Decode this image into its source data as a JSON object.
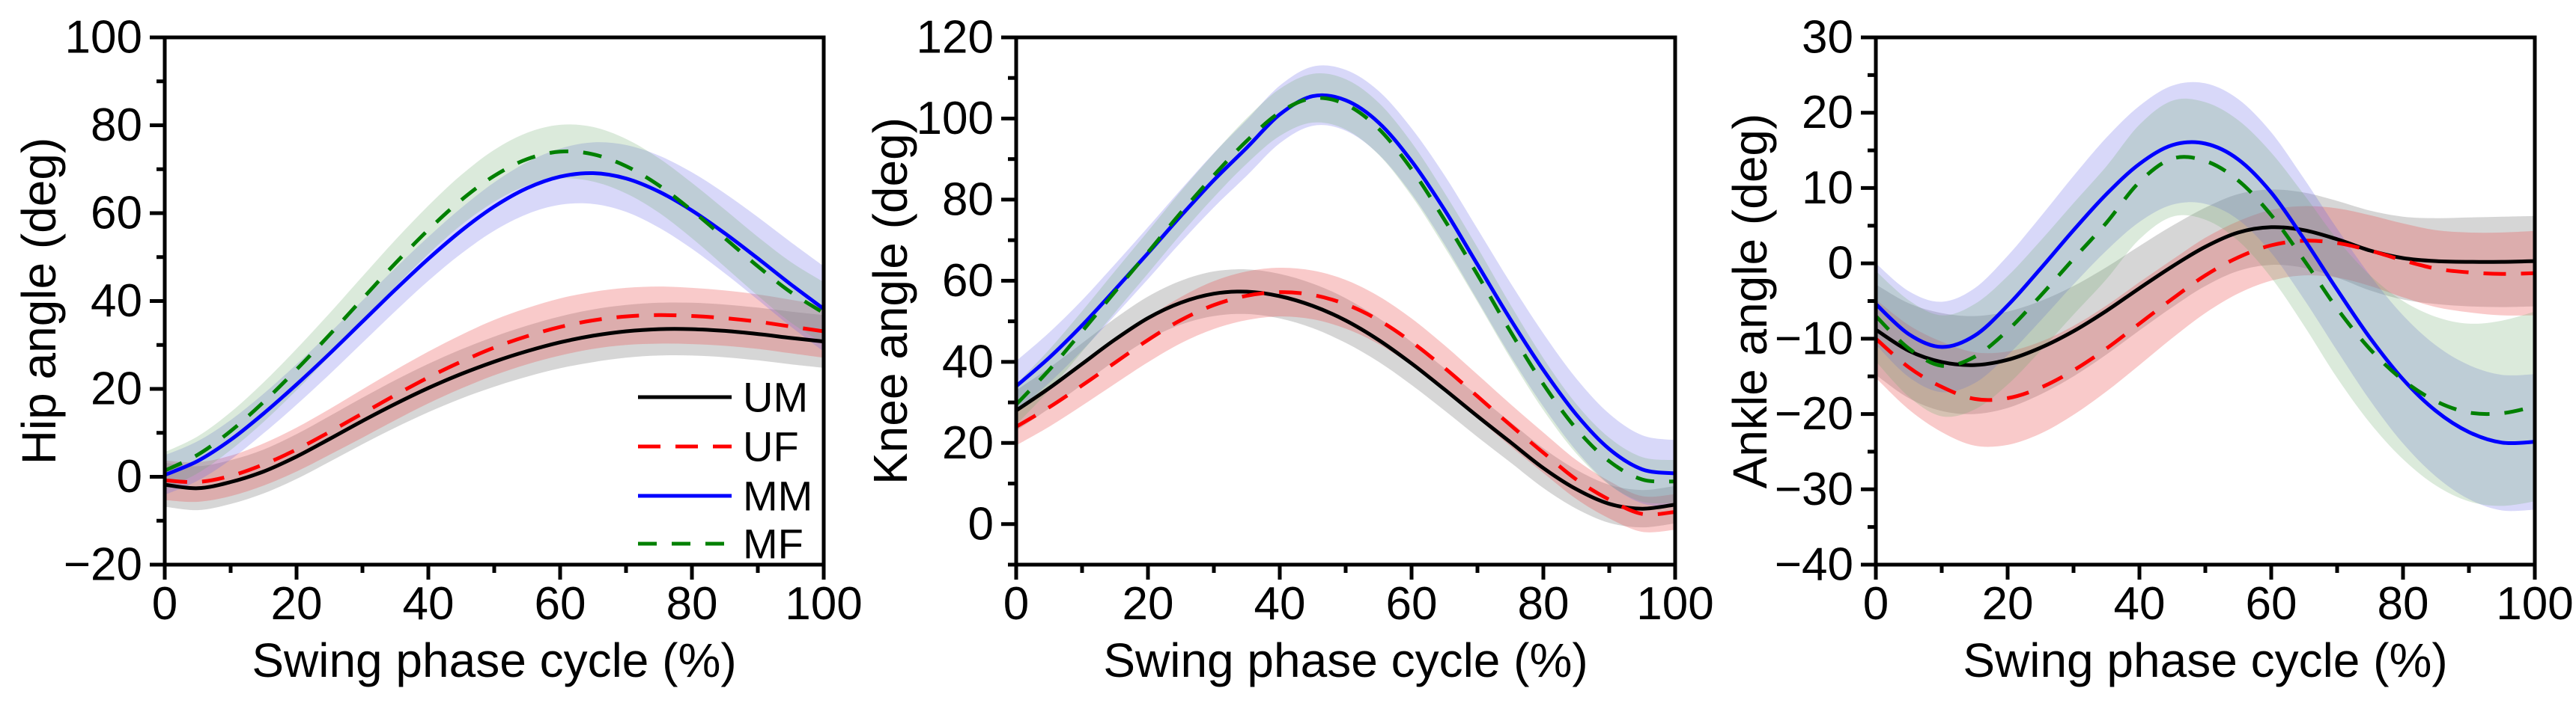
{
  "figure_title": "",
  "chart_data": [
    {
      "type": "line",
      "panel_id": "hip",
      "title": "",
      "xlabel": "Swing phase cycle (%)",
      "ylabel": "Hip angle (deg)",
      "xlim": [
        0,
        100
      ],
      "ylim": [
        -20,
        100
      ],
      "xticks": [
        0,
        20,
        40,
        60,
        80,
        100
      ],
      "yticks": [
        -20,
        0,
        20,
        40,
        60,
        80,
        100
      ],
      "x_minor_step": 10,
      "y_minor_step": 10,
      "grid": false,
      "x": [
        0,
        5,
        10,
        15,
        20,
        25,
        30,
        35,
        40,
        45,
        50,
        55,
        60,
        65,
        70,
        75,
        80,
        85,
        90,
        95,
        100
      ],
      "series": [
        {
          "name": "UM",
          "color": "#000000",
          "line_style": "solid",
          "band_color": "rgba(128,128,128,0.32)",
          "values": [
            -1.8,
            -2.6,
            -1.2,
            1.2,
            4.6,
            8.6,
            12.7,
            16.6,
            20.2,
            23.4,
            26.2,
            28.6,
            30.6,
            32.1,
            33.1,
            33.6,
            33.6,
            33.2,
            32.5,
            31.6,
            30.8
          ],
          "band_halfwidth": [
            5,
            5,
            5,
            5,
            5.1,
            5.2,
            5.3,
            5.4,
            5.5,
            5.6,
            5.7,
            5.8,
            5.9,
            6,
            6,
            6,
            6,
            6,
            6,
            6,
            6
          ]
        },
        {
          "name": "UF",
          "color": "#ff0000",
          "line_style": "dash",
          "band_color": "rgba(235,80,80,0.30)",
          "values": [
            -0.8,
            -1.2,
            0.2,
            2.8,
            6.2,
            10.2,
            14.4,
            18.6,
            22.6,
            26.2,
            29.4,
            32,
            34.1,
            35.6,
            36.5,
            36.8,
            36.6,
            36.1,
            35.3,
            34.2,
            33.1
          ],
          "band_halfwidth": [
            4.5,
            4.5,
            4.6,
            4.8,
            5,
            5.2,
            5.5,
            5.7,
            5.9,
            6.1,
            6.3,
            6.4,
            6.5,
            6.5,
            6.5,
            6.5,
            6.4,
            6.3,
            6.2,
            6.1,
            6
          ]
        },
        {
          "name": "MM",
          "color": "#0000ff",
          "line_style": "solid",
          "band_color": "rgba(100,100,230,0.25)",
          "values": [
            0.4,
            3.6,
            8.4,
            14.4,
            21,
            28,
            35.3,
            42.6,
            49.6,
            56,
            61.5,
            65.7,
            68.3,
            69.1,
            67.9,
            64.9,
            60.6,
            55.4,
            49.7,
            43.8,
            38.2
          ],
          "band_halfwidth": [
            4.5,
            4.5,
            4.5,
            4.5,
            4.6,
            4.7,
            4.8,
            4.9,
            5,
            5.2,
            5.5,
            5.9,
            6.4,
            7,
            7.6,
            8.2,
            8.7,
            9.1,
            9.4,
            9.6,
            9.7
          ]
        },
        {
          "name": "MF",
          "color": "#008000",
          "line_style": "dash",
          "band_color": "rgba(110,170,110,0.25)",
          "values": [
            1.4,
            5,
            10.4,
            17,
            24.4,
            32.3,
            40.5,
            48.6,
            56.2,
            63,
            68.5,
            72.3,
            74,
            73.4,
            70.7,
            66.3,
            60.6,
            54.3,
            47.9,
            42,
            37.3
          ],
          "band_halfwidth": [
            4.2,
            4.2,
            4.3,
            4.5,
            4.7,
            4.9,
            5.1,
            5.3,
            5.5,
            5.7,
            5.9,
            6,
            6.1,
            6.2,
            6.2,
            6.2,
            6.3,
            6.5,
            6.7,
            6.9,
            7
          ]
        }
      ],
      "legend": {
        "show": true,
        "labels": [
          "UM",
          "UF",
          "MM",
          "MF"
        ],
        "position": "bottom-right"
      }
    },
    {
      "type": "line",
      "panel_id": "knee",
      "title": "",
      "xlabel": "Swing phase cycle (%)",
      "ylabel": "Knee angle (deg)",
      "xlim": [
        0,
        100
      ],
      "ylim": [
        -10,
        120
      ],
      "xticks": [
        0,
        20,
        40,
        60,
        80,
        100
      ],
      "yticks": [
        0,
        20,
        40,
        60,
        80,
        100,
        120
      ],
      "x_minor_step": 10,
      "y_minor_step": 10,
      "grid": false,
      "x": [
        0,
        5,
        10,
        15,
        20,
        25,
        30,
        35,
        40,
        45,
        50,
        55,
        60,
        65,
        70,
        75,
        80,
        85,
        90,
        95,
        100
      ],
      "series": [
        {
          "name": "UM",
          "color": "#000000",
          "line_style": "solid",
          "band_color": "rgba(128,128,128,0.32)",
          "values": [
            28,
            33.5,
            39.5,
            45.5,
            50.8,
            54.6,
            56.8,
            57.3,
            56.2,
            53.8,
            50.2,
            45.4,
            39.6,
            33.2,
            26.6,
            20.2,
            13.8,
            8.6,
            5,
            3.8,
            4.8
          ],
          "band_halfwidth": [
            5,
            5,
            5.1,
            5.2,
            5.3,
            5.4,
            5.5,
            5.5,
            5.5,
            5.5,
            5.5,
            5.4,
            5.3,
            5.2,
            5.1,
            5,
            4.9,
            4.8,
            4.7,
            4.6,
            4.6
          ]
        },
        {
          "name": "UF",
          "color": "#ff0000",
          "line_style": "dash",
          "band_color": "rgba(235,80,80,0.30)",
          "values": [
            24,
            28.8,
            34.2,
            39.8,
            45.4,
            50.3,
            54,
            56.3,
            57.2,
            56.5,
            54.2,
            50.3,
            44.9,
            38.5,
            31.5,
            24.4,
            17.6,
            11,
            6,
            2.5,
            3
          ],
          "band_halfwidth": [
            4.6,
            4.8,
            5,
            5.2,
            5.5,
            5.7,
            5.9,
            6,
            6,
            6,
            6,
            5.9,
            5.8,
            5.6,
            5.4,
            5.2,
            5,
            4.8,
            4.6,
            4.4,
            4.4
          ]
        },
        {
          "name": "MM",
          "color": "#0000ff",
          "line_style": "solid",
          "band_color": "rgba(100,100,230,0.25)",
          "values": [
            34,
            41,
            49,
            57.8,
            66.8,
            76,
            84.8,
            92.8,
            101,
            105.5,
            104.5,
            99,
            89.5,
            77.5,
            64,
            50.5,
            38,
            27,
            18.5,
            13.5,
            12.5
          ],
          "band_halfwidth": [
            6.2,
            6.2,
            6.2,
            6.3,
            6.4,
            6.5,
            6.7,
            6.9,
            7.1,
            7.3,
            7.5,
            7.8,
            8.1,
            8.5,
            8.8,
            9,
            9,
            8.9,
            8.7,
            8.4,
            8.2
          ]
        },
        {
          "name": "MF",
          "color": "#008000",
          "line_style": "dash",
          "band_color": "rgba(110,170,110,0.25)",
          "values": [
            29.5,
            38,
            47.5,
            57.3,
            67,
            76.8,
            86,
            94.5,
            101.5,
            105,
            103.5,
            97.5,
            87.5,
            75,
            61.5,
            47.5,
            34.5,
            23.5,
            15.5,
            11,
            10.5
          ],
          "band_halfwidth": [
            5,
            5,
            5,
            5.1,
            5.2,
            5.3,
            5.4,
            5.6,
            5.8,
            6,
            6.2,
            6.4,
            6.6,
            6.7,
            6.7,
            6.6,
            6.4,
            6.1,
            5.8,
            5.5,
            5.3
          ]
        }
      ],
      "legend": {
        "show": false,
        "labels": [],
        "position": ""
      }
    },
    {
      "type": "line",
      "panel_id": "ankle",
      "title": "",
      "xlabel": "Swing phase cycle (%)",
      "ylabel": "Ankle angle (deg)",
      "xlim": [
        0,
        100
      ],
      "ylim": [
        -40,
        30
      ],
      "xticks": [
        0,
        20,
        40,
        60,
        80,
        100
      ],
      "yticks": [
        -40,
        -30,
        -20,
        -10,
        0,
        10,
        20,
        30
      ],
      "x_minor_step": 10,
      "y_minor_step": 5,
      "grid": false,
      "x": [
        0,
        5,
        10,
        15,
        20,
        25,
        30,
        35,
        40,
        45,
        50,
        55,
        60,
        65,
        70,
        75,
        80,
        85,
        90,
        95,
        100
      ],
      "series": [
        {
          "name": "UM",
          "color": "#000000",
          "line_style": "solid",
          "band_color": "rgba(128,128,128,0.32)",
          "values": [
            -8.8,
            -11.6,
            -13.1,
            -13.5,
            -12.8,
            -11.2,
            -9,
            -6.3,
            -3.3,
            -0.4,
            2.2,
            4.1,
            4.8,
            4.4,
            3.2,
            1.7,
            0.7,
            0.3,
            0.2,
            0.2,
            0.3
          ],
          "band_halfwidth": [
            6,
            6.3,
            6.5,
            6.5,
            6.4,
            6.2,
            6,
            5.8,
            5.6,
            5.4,
            5.2,
            5.1,
            5,
            5,
            5.1,
            5.3,
            5.5,
            5.7,
            5.9,
            6,
            6
          ]
        },
        {
          "name": "UF",
          "color": "#ff0000",
          "line_style": "dash",
          "band_color": "rgba(235,80,80,0.30)",
          "values": [
            -10,
            -13.8,
            -16.4,
            -18,
            -17.9,
            -16.5,
            -14.2,
            -11.3,
            -8,
            -4.7,
            -1.6,
            0.8,
            2.4,
            3,
            2.7,
            1.7,
            0.4,
            -0.7,
            -1.2,
            -1.4,
            -1.3
          ],
          "band_halfwidth": [
            5.2,
            5.6,
            6,
            6.2,
            6.2,
            6.1,
            5.9,
            5.7,
            5.5,
            5.2,
            5,
            4.8,
            4.7,
            4.6,
            4.6,
            4.7,
            4.9,
            5.1,
            5.3,
            5.5,
            5.6
          ]
        },
        {
          "name": "MM",
          "color": "#0000ff",
          "line_style": "solid",
          "band_color": "rgba(100,100,230,0.25)",
          "values": [
            -5.4,
            -9.4,
            -11.1,
            -9.6,
            -5.6,
            -0.7,
            4.4,
            9.2,
            13.2,
            15.7,
            15.9,
            13.8,
            9.4,
            3.2,
            -3.5,
            -9.9,
            -15.4,
            -19.6,
            -22.4,
            -23.8,
            -23.7
          ],
          "band_halfwidth": [
            5.4,
            5.7,
            6,
            6.3,
            6.6,
            6.9,
            7.2,
            7.5,
            7.7,
            7.9,
            8,
            8,
            8,
            8,
            8.1,
            8.3,
            8.5,
            8.7,
            8.9,
            9,
            9
          ]
        },
        {
          "name": "MF",
          "color": "#008000",
          "line_style": "dash",
          "band_color": "rgba(110,170,110,0.25)",
          "values": [
            -7,
            -11.3,
            -13.6,
            -12.4,
            -8.9,
            -4.3,
            0.6,
            5.4,
            10.8,
            13.9,
            13.6,
            11,
            6.4,
            0.4,
            -6,
            -11.4,
            -15.5,
            -18.3,
            -19.8,
            -19.9,
            -19
          ],
          "band_halfwidth": [
            6,
            6.4,
            6.7,
            7,
            7.2,
            7.3,
            7.4,
            7.5,
            7.6,
            7.7,
            7.8,
            8,
            8.3,
            8.7,
            9.2,
            9.8,
            10.5,
            11.2,
            11.8,
            12.3,
            12.6
          ]
        }
      ],
      "legend": {
        "show": false,
        "labels": [],
        "position": ""
      }
    }
  ]
}
